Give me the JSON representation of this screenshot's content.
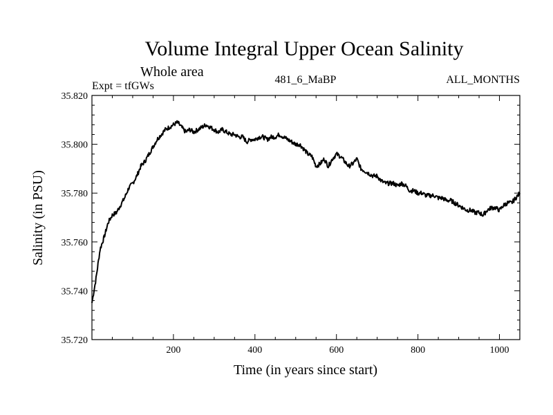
{
  "chart_data": {
    "type": "line",
    "title": "Volume Integral Upper Ocean Salinity",
    "subtitle": "Whole area",
    "left_label": "Expt = tfGWs",
    "center_label": "481_6_MaBP",
    "right_label": "ALL_MONTHS",
    "xlabel": "Time (in years since start)",
    "ylabel": "Salinity (in PSU)",
    "xlim": [
      0,
      1050
    ],
    "ylim": [
      35.72,
      35.82
    ],
    "xticks": [
      200,
      400,
      600,
      800,
      1000
    ],
    "xtick_labels": [
      "200",
      "400",
      "600",
      "800",
      "1000"
    ],
    "yticks": [
      35.72,
      35.74,
      35.76,
      35.78,
      35.8,
      35.82
    ],
    "ytick_labels": [
      "35.720",
      "35.740",
      "35.760",
      "35.780",
      "35.800",
      "35.820"
    ],
    "grid": false,
    "series": [
      {
        "name": "salinity",
        "color": "#000000",
        "x": [
          0,
          10,
          20,
          30,
          40,
          50,
          60,
          70,
          80,
          90,
          100,
          110,
          120,
          130,
          140,
          150,
          160,
          170,
          180,
          190,
          200,
          210,
          220,
          230,
          240,
          250,
          260,
          270,
          280,
          290,
          300,
          310,
          320,
          330,
          340,
          350,
          360,
          370,
          380,
          390,
          400,
          410,
          420,
          430,
          440,
          450,
          460,
          470,
          480,
          490,
          500,
          510,
          520,
          530,
          540,
          550,
          560,
          570,
          580,
          590,
          600,
          610,
          620,
          630,
          640,
          650,
          660,
          670,
          680,
          690,
          700,
          710,
          720,
          730,
          740,
          750,
          760,
          770,
          780,
          790,
          800,
          810,
          820,
          830,
          840,
          850,
          860,
          870,
          880,
          890,
          900,
          910,
          920,
          930,
          940,
          950,
          960,
          970,
          980,
          990,
          1000,
          1010,
          1020,
          1030,
          1040,
          1050
        ],
        "values": [
          35.735,
          35.745,
          35.757,
          35.762,
          35.768,
          35.771,
          35.772,
          35.775,
          35.778,
          35.782,
          35.784,
          35.787,
          35.791,
          35.793,
          35.796,
          35.799,
          35.802,
          35.804,
          35.806,
          35.807,
          35.808,
          35.809,
          35.807,
          35.805,
          35.806,
          35.805,
          35.806,
          35.807,
          35.808,
          35.807,
          35.806,
          35.805,
          35.806,
          35.805,
          35.804,
          35.804,
          35.803,
          35.803,
          35.801,
          35.802,
          35.802,
          35.803,
          35.803,
          35.802,
          35.803,
          35.803,
          35.804,
          35.803,
          35.802,
          35.801,
          35.8,
          35.8,
          35.798,
          35.796,
          35.795,
          35.791,
          35.792,
          35.794,
          35.791,
          35.794,
          35.796,
          35.795,
          35.793,
          35.791,
          35.792,
          35.794,
          35.79,
          35.789,
          35.788,
          35.787,
          35.787,
          35.785,
          35.784,
          35.784,
          35.784,
          35.783,
          35.784,
          35.783,
          35.781,
          35.781,
          35.78,
          35.78,
          35.779,
          35.779,
          35.779,
          35.778,
          35.778,
          35.777,
          35.777,
          35.776,
          35.775,
          35.774,
          35.773,
          35.773,
          35.772,
          35.772,
          35.771,
          35.773,
          35.774,
          35.774,
          35.773,
          35.775,
          35.776,
          35.776,
          35.778,
          35.78
        ]
      }
    ]
  }
}
